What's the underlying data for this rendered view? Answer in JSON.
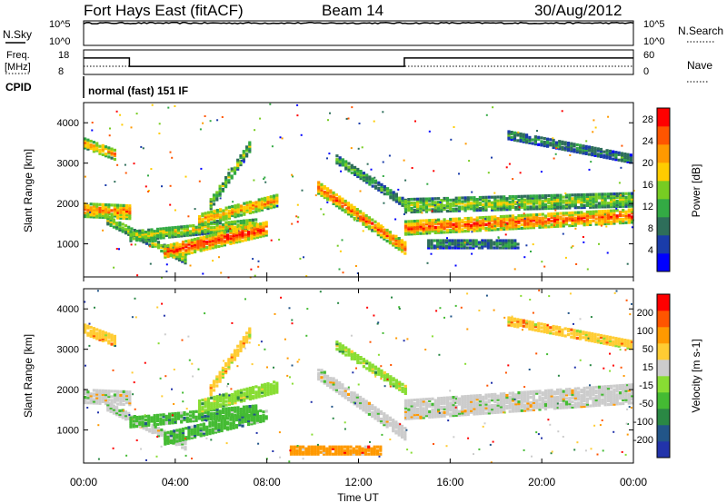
{
  "header": {
    "title": "Fort Hays East (fitACF)",
    "beam": "Beam 14",
    "date": "30/Aug/2012"
  },
  "nsky": {
    "label": "N.Sky",
    "ticks": [
      "10^5",
      "10^0"
    ],
    "right_ticks": [
      "10^5",
      "10^0"
    ],
    "right_label": "N.Search",
    "approx_value": 4
  },
  "freq": {
    "label_line1": "Freq.",
    "label_line2": "[MHz]",
    "ticks": [
      18,
      8
    ],
    "right_ticks": [
      60,
      0
    ],
    "right_label": "Nave",
    "segments": [
      {
        "from_hour": 0,
        "to_hour": 2,
        "mhz": 15
      },
      {
        "from_hour": 2,
        "to_hour": 14,
        "mhz": 11
      },
      {
        "from_hour": 14,
        "to_hour": 24,
        "mhz": 15
      }
    ]
  },
  "cpid": {
    "label": "CPID",
    "text": "normal (fast) 151 IF"
  },
  "chart_data": [
    {
      "type": "heatmap",
      "name": "power",
      "ylabel": "Slant Range [km]",
      "yticks": [
        "1000",
        "2000",
        "3000",
        "4000"
      ],
      "ylim": [
        180,
        4500
      ],
      "colorbar_label": "Power [dB]",
      "colorbar_ticks": [
        "4",
        "8",
        "12",
        "16",
        "20",
        "24",
        "28"
      ],
      "colorbar_range": [
        0,
        30
      ],
      "colors": [
        "#0000ff",
        "#1a3caa",
        "#2e6e5a",
        "#33aa44",
        "#77cc22",
        "#ffcc00",
        "#ff9900",
        "#ff5500",
        "#ff0000"
      ],
      "echo_bands": [
        {
          "t_start": 0.0,
          "t_end": 1.4,
          "r_start": 3500,
          "r_end": 3200,
          "width": 250,
          "level": 0.75
        },
        {
          "t_start": 0.0,
          "t_end": 2.0,
          "r_start": 1850,
          "r_end": 1800,
          "width": 350,
          "level": 0.8
        },
        {
          "t_start": 1.0,
          "t_end": 4.5,
          "r_start": 1600,
          "r_end": 600,
          "width": 220,
          "level": 0.55
        },
        {
          "t_start": 2.0,
          "t_end": 7.5,
          "r_start": 1200,
          "r_end": 1500,
          "width": 250,
          "level": 0.6
        },
        {
          "t_start": 3.5,
          "t_end": 8.0,
          "r_start": 800,
          "r_end": 1400,
          "width": 350,
          "level": 0.92
        },
        {
          "t_start": 5.0,
          "t_end": 8.5,
          "r_start": 1600,
          "r_end": 2100,
          "width": 300,
          "level": 0.75
        },
        {
          "t_start": 5.5,
          "t_end": 7.3,
          "r_start": 2000,
          "r_end": 3500,
          "width": 250,
          "level": 0.55
        },
        {
          "t_start": 10.2,
          "t_end": 14.0,
          "r_start": 2400,
          "r_end": 900,
          "width": 300,
          "level": 0.85
        },
        {
          "t_start": 11.0,
          "t_end": 14.0,
          "r_start": 3100,
          "r_end": 2000,
          "width": 200,
          "level": 0.45
        },
        {
          "t_start": 14.0,
          "t_end": 24.0,
          "r_start": 1400,
          "r_end": 1700,
          "width": 330,
          "level": 0.88
        },
        {
          "t_start": 14.0,
          "t_end": 24.0,
          "r_start": 1950,
          "r_end": 2100,
          "width": 330,
          "level": 0.55
        },
        {
          "t_start": 15.0,
          "t_end": 19.0,
          "r_start": 1000,
          "r_end": 1000,
          "width": 200,
          "level": 0.35
        },
        {
          "t_start": 18.5,
          "t_end": 24.0,
          "r_start": 3700,
          "r_end": 3100,
          "width": 200,
          "level": 0.35
        }
      ]
    },
    {
      "type": "heatmap",
      "name": "velocity",
      "ylabel": "Slant Range [km]",
      "yticks": [
        "1000",
        "2000",
        "3000",
        "4000"
      ],
      "ylim": [
        180,
        4500
      ],
      "xlabel": "Time UT",
      "xticks": [
        "00:00",
        "04:00",
        "08:00",
        "12:00",
        "16:00",
        "20:00",
        "00:00"
      ],
      "xlim_hours": [
        0,
        24
      ],
      "colorbar_label": "Velocity [m s-1]",
      "colorbar_ticks": [
        "200",
        "100",
        "50",
        "15",
        "-15",
        "-50",
        "-100",
        "-200"
      ],
      "colors": [
        "#2233aa",
        "#225588",
        "#2a8844",
        "#44bb33",
        "#88dd33",
        "#cccccc",
        "#ffcc33",
        "#ff9900",
        "#ff5500",
        "#ff0000"
      ],
      "echo_bands": [
        {
          "t_start": 0.0,
          "t_end": 2.0,
          "r_start": 1850,
          "r_end": 1800,
          "width": 350,
          "class": 5
        },
        {
          "t_start": 0.0,
          "t_end": 1.4,
          "r_start": 3500,
          "r_end": 3200,
          "width": 250,
          "class": 6
        },
        {
          "t_start": 1.0,
          "t_end": 4.5,
          "r_start": 1600,
          "r_end": 600,
          "width": 220,
          "class": 5
        },
        {
          "t_start": 2.0,
          "t_end": 7.5,
          "r_start": 1200,
          "r_end": 1500,
          "width": 250,
          "class": 3
        },
        {
          "t_start": 3.5,
          "t_end": 8.0,
          "r_start": 800,
          "r_end": 1400,
          "width": 300,
          "class": 3
        },
        {
          "t_start": 5.0,
          "t_end": 8.5,
          "r_start": 1600,
          "r_end": 2100,
          "width": 300,
          "class": 4
        },
        {
          "t_start": 5.5,
          "t_end": 7.3,
          "r_start": 2000,
          "r_end": 3500,
          "width": 250,
          "class": 6
        },
        {
          "t_start": 10.2,
          "t_end": 14.0,
          "r_start": 2400,
          "r_end": 900,
          "width": 280,
          "class": 5
        },
        {
          "t_start": 11.0,
          "t_end": 14.0,
          "r_start": 3100,
          "r_end": 2000,
          "width": 200,
          "class": 4
        },
        {
          "t_start": 14.0,
          "t_end": 24.0,
          "r_start": 1500,
          "r_end": 1900,
          "width": 450,
          "class": 5
        },
        {
          "t_start": 18.5,
          "t_end": 24.0,
          "r_start": 3700,
          "r_end": 3100,
          "width": 200,
          "class": 6
        },
        {
          "t_start": 9.0,
          "t_end": 13.0,
          "r_start": 500,
          "r_end": 500,
          "width": 200,
          "class": 7
        }
      ]
    }
  ]
}
